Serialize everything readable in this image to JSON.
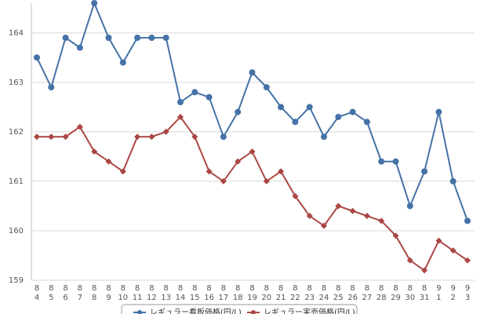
{
  "chart_data": {
    "type": "line",
    "categories": [
      [
        "8",
        "4"
      ],
      [
        "8",
        "5"
      ],
      [
        "8",
        "6"
      ],
      [
        "8",
        "7"
      ],
      [
        "8",
        "8"
      ],
      [
        "8",
        "9"
      ],
      [
        "8",
        "10"
      ],
      [
        "8",
        "11"
      ],
      [
        "8",
        "12"
      ],
      [
        "8",
        "13"
      ],
      [
        "8",
        "14"
      ],
      [
        "8",
        "15"
      ],
      [
        "8",
        "16"
      ],
      [
        "8",
        "17"
      ],
      [
        "8",
        "18"
      ],
      [
        "8",
        "19"
      ],
      [
        "8",
        "20"
      ],
      [
        "8",
        "21"
      ],
      [
        "8",
        "22"
      ],
      [
        "8",
        "23"
      ],
      [
        "8",
        "24"
      ],
      [
        "8",
        "25"
      ],
      [
        "8",
        "26"
      ],
      [
        "8",
        "27"
      ],
      [
        "8",
        "28"
      ],
      [
        "8",
        "29"
      ],
      [
        "8",
        "30"
      ],
      [
        "8",
        "31"
      ],
      [
        "9",
        "1"
      ],
      [
        "9",
        "2"
      ],
      [
        "9",
        "3"
      ]
    ],
    "series": [
      {
        "name": "レギュラー看板価格(円/L)",
        "color": "#4572a7",
        "marker": "circle",
        "values": [
          163.5,
          162.9,
          163.9,
          163.7,
          164.6,
          163.9,
          163.4,
          163.9,
          163.9,
          163.9,
          162.6,
          162.8,
          162.7,
          161.9,
          162.4,
          163.2,
          162.9,
          162.5,
          162.2,
          162.5,
          161.9,
          162.3,
          162.4,
          162.2,
          161.4,
          161.4,
          160.5,
          161.2,
          162.4,
          161.0,
          160.2
        ]
      },
      {
        "name": "レギュラー実売価格(円/L)",
        "color": "#aa4643",
        "marker": "diamond",
        "values": [
          161.9,
          161.9,
          161.9,
          162.1,
          161.6,
          161.4,
          161.2,
          161.9,
          161.9,
          162.0,
          162.3,
          161.9,
          161.2,
          161.0,
          161.4,
          161.6,
          161.0,
          161.2,
          160.7,
          160.3,
          160.1,
          160.5,
          160.4,
          160.3,
          160.2,
          159.9,
          159.4,
          159.2,
          159.8,
          159.6,
          159.4
        ]
      }
    ],
    "ylim": [
      159,
      164.6
    ],
    "yticks": [
      159,
      160,
      161,
      162,
      163,
      164
    ],
    "grid": true,
    "legend": "bottom"
  }
}
